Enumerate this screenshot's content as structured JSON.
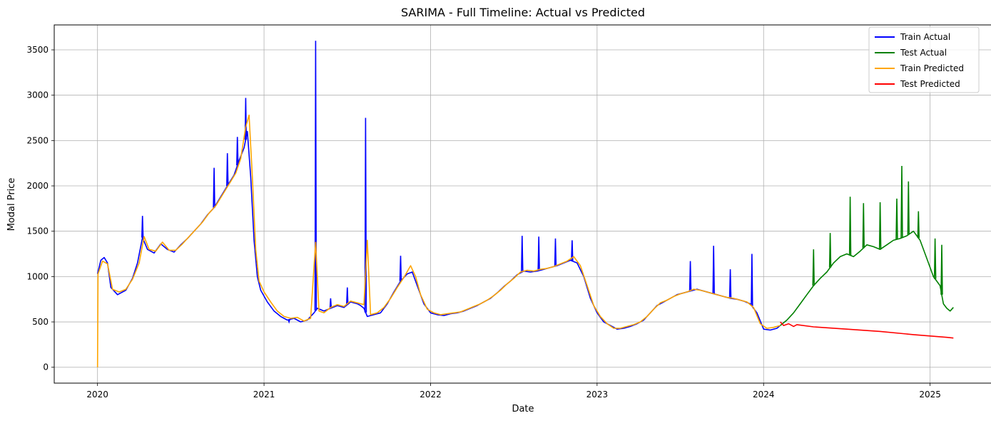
{
  "chart_data": {
    "type": "line",
    "title": "SARIMA - Full Timeline: Actual vs Predicted",
    "xlabel": "Date",
    "ylabel": "Modal Price",
    "x_ticks": [
      "2020",
      "2021",
      "2022",
      "2023",
      "2024",
      "2025"
    ],
    "y_ticks": [
      0,
      500,
      1000,
      1500,
      2000,
      2500,
      3000,
      3500
    ],
    "xlim": [
      2019.74,
      2025.37
    ],
    "ylim": [
      -175,
      3775
    ],
    "grid": true,
    "legend_position": "top-right",
    "series": [
      {
        "name": "Train Actual",
        "color": "#0000ff",
        "points": [
          [
            2020.0,
            1030
          ],
          [
            2020.02,
            1180
          ],
          [
            2020.04,
            1210
          ],
          [
            2020.06,
            1150
          ],
          [
            2020.08,
            880
          ],
          [
            2020.12,
            800
          ],
          [
            2020.17,
            850
          ],
          [
            2020.21,
            980
          ],
          [
            2020.24,
            1150
          ],
          [
            2020.27,
            1430
          ],
          [
            2020.3,
            1300
          ],
          [
            2020.34,
            1260
          ],
          [
            2020.38,
            1360
          ],
          [
            2020.42,
            1300
          ],
          [
            2020.46,
            1270
          ],
          [
            2020.5,
            1350
          ],
          [
            2020.54,
            1420
          ],
          [
            2020.58,
            1500
          ],
          [
            2020.62,
            1580
          ],
          [
            2020.66,
            1680
          ],
          [
            2020.7,
            1760
          ],
          [
            2020.74,
            1880
          ],
          [
            2020.78,
            2000
          ],
          [
            2020.82,
            2120
          ],
          [
            2020.85,
            2280
          ],
          [
            2020.88,
            2420
          ],
          [
            2020.9,
            2600
          ],
          [
            2020.92,
            2100
          ],
          [
            2020.94,
            1400
          ],
          [
            2020.96,
            1000
          ],
          [
            2020.98,
            850
          ],
          [
            2021.02,
            720
          ],
          [
            2021.06,
            620
          ],
          [
            2021.1,
            560
          ],
          [
            2021.14,
            520
          ],
          [
            2021.18,
            540
          ],
          [
            2021.22,
            500
          ],
          [
            2021.26,
            520
          ],
          [
            2021.3,
            600
          ],
          [
            2021.32,
            650
          ],
          [
            2021.36,
            620
          ],
          [
            2021.4,
            650
          ],
          [
            2021.44,
            680
          ],
          [
            2021.48,
            660
          ],
          [
            2021.52,
            720
          ],
          [
            2021.56,
            700
          ],
          [
            2021.58,
            680
          ],
          [
            2021.6,
            650
          ],
          [
            2021.62,
            560
          ],
          [
            2021.66,
            580
          ],
          [
            2021.7,
            600
          ],
          [
            2021.74,
            700
          ],
          [
            2021.78,
            830
          ],
          [
            2021.82,
            950
          ],
          [
            2021.86,
            1030
          ],
          [
            2021.89,
            1050
          ],
          [
            2021.92,
            900
          ],
          [
            2021.96,
            700
          ],
          [
            2022.0,
            600
          ],
          [
            2022.04,
            580
          ],
          [
            2022.08,
            570
          ],
          [
            2022.12,
            590
          ],
          [
            2022.16,
            600
          ],
          [
            2022.2,
            620
          ],
          [
            2022.24,
            650
          ],
          [
            2022.28,
            680
          ],
          [
            2022.32,
            720
          ],
          [
            2022.36,
            760
          ],
          [
            2022.4,
            820
          ],
          [
            2022.44,
            890
          ],
          [
            2022.48,
            950
          ],
          [
            2022.52,
            1020
          ],
          [
            2022.56,
            1060
          ],
          [
            2022.6,
            1050
          ],
          [
            2022.64,
            1060
          ],
          [
            2022.68,
            1080
          ],
          [
            2022.72,
            1100
          ],
          [
            2022.76,
            1120
          ],
          [
            2022.8,
            1150
          ],
          [
            2022.84,
            1180
          ],
          [
            2022.88,
            1150
          ],
          [
            2022.92,
            1000
          ],
          [
            2022.96,
            760
          ],
          [
            2023.0,
            600
          ],
          [
            2023.04,
            500
          ],
          [
            2023.08,
            460
          ],
          [
            2023.12,
            420
          ],
          [
            2023.16,
            430
          ],
          [
            2023.2,
            450
          ],
          [
            2023.24,
            480
          ],
          [
            2023.28,
            520
          ],
          [
            2023.32,
            600
          ],
          [
            2023.36,
            680
          ],
          [
            2023.4,
            720
          ],
          [
            2023.44,
            760
          ],
          [
            2023.48,
            800
          ],
          [
            2023.52,
            820
          ],
          [
            2023.56,
            840
          ],
          [
            2023.6,
            860
          ],
          [
            2023.64,
            840
          ],
          [
            2023.68,
            820
          ],
          [
            2023.72,
            800
          ],
          [
            2023.76,
            780
          ],
          [
            2023.8,
            760
          ],
          [
            2023.84,
            750
          ],
          [
            2023.88,
            730
          ],
          [
            2023.92,
            700
          ],
          [
            2023.96,
            600
          ],
          [
            2024.0,
            420
          ],
          [
            2024.04,
            410
          ],
          [
            2024.08,
            430
          ],
          [
            2024.1,
            460
          ]
        ],
        "spikes": [
          [
            2020.27,
            1670
          ],
          [
            2020.89,
            2970
          ],
          [
            2021.31,
            3600
          ],
          [
            2021.61,
            2750
          ],
          [
            2021.15,
            500
          ],
          [
            2021.4,
            760
          ],
          [
            2021.5,
            880
          ],
          [
            2021.82,
            1230
          ],
          [
            2022.55,
            1450
          ],
          [
            2022.65,
            1440
          ],
          [
            2022.75,
            1420
          ],
          [
            2022.85,
            1400
          ],
          [
            2023.7,
            1340
          ],
          [
            2023.93,
            1250
          ],
          [
            2023.56,
            1170
          ],
          [
            2023.8,
            1080
          ],
          [
            2020.7,
            2200
          ],
          [
            2020.78,
            2360
          ],
          [
            2020.84,
            2540
          ]
        ]
      },
      {
        "name": "Test Actual",
        "color": "#008000",
        "points": [
          [
            2024.1,
            460
          ],
          [
            2024.14,
            520
          ],
          [
            2024.18,
            600
          ],
          [
            2024.22,
            700
          ],
          [
            2024.26,
            800
          ],
          [
            2024.3,
            900
          ],
          [
            2024.34,
            980
          ],
          [
            2024.38,
            1050
          ],
          [
            2024.42,
            1150
          ],
          [
            2024.46,
            1220
          ],
          [
            2024.5,
            1250
          ],
          [
            2024.54,
            1220
          ],
          [
            2024.58,
            1280
          ],
          [
            2024.62,
            1350
          ],
          [
            2024.66,
            1330
          ],
          [
            2024.7,
            1300
          ],
          [
            2024.74,
            1350
          ],
          [
            2024.78,
            1400
          ],
          [
            2024.82,
            1420
          ],
          [
            2024.86,
            1450
          ],
          [
            2024.9,
            1500
          ],
          [
            2024.94,
            1400
          ],
          [
            2024.98,
            1200
          ],
          [
            2025.02,
            1000
          ],
          [
            2025.06,
            900
          ],
          [
            2025.08,
            700
          ],
          [
            2025.1,
            650
          ],
          [
            2025.12,
            620
          ],
          [
            2025.14,
            660
          ]
        ],
        "spikes": [
          [
            2024.3,
            1300
          ],
          [
            2024.4,
            1480
          ],
          [
            2024.52,
            1880
          ],
          [
            2024.6,
            1810
          ],
          [
            2024.7,
            1820
          ],
          [
            2024.8,
            1860
          ],
          [
            2024.83,
            2220
          ],
          [
            2024.87,
            2050
          ],
          [
            2024.93,
            1720
          ],
          [
            2025.03,
            1420
          ],
          [
            2025.07,
            1350
          ]
        ]
      },
      {
        "name": "Train Predicted",
        "color": "#ffa500",
        "points": [
          [
            2020.0,
            0
          ],
          [
            2020.003,
            1030
          ],
          [
            2020.03,
            1170
          ],
          [
            2020.06,
            1140
          ],
          [
            2020.09,
            860
          ],
          [
            2020.13,
            830
          ],
          [
            2020.17,
            860
          ],
          [
            2020.21,
            970
          ],
          [
            2020.25,
            1150
          ],
          [
            2020.28,
            1440
          ],
          [
            2020.31,
            1300
          ],
          [
            2020.35,
            1280
          ],
          [
            2020.39,
            1380
          ],
          [
            2020.43,
            1290
          ],
          [
            2020.47,
            1290
          ],
          [
            2020.51,
            1360
          ],
          [
            2020.55,
            1440
          ],
          [
            2020.59,
            1520
          ],
          [
            2020.63,
            1600
          ],
          [
            2020.67,
            1700
          ],
          [
            2020.71,
            1780
          ],
          [
            2020.75,
            1900
          ],
          [
            2020.79,
            2020
          ],
          [
            2020.83,
            2140
          ],
          [
            2020.86,
            2300
          ],
          [
            2020.89,
            2650
          ],
          [
            2020.91,
            2780
          ],
          [
            2020.93,
            2100
          ],
          [
            2020.95,
            1300
          ],
          [
            2020.97,
            950
          ],
          [
            2021.0,
            830
          ],
          [
            2021.04,
            720
          ],
          [
            2021.08,
            620
          ],
          [
            2021.12,
            560
          ],
          [
            2021.16,
            540
          ],
          [
            2021.2,
            550
          ],
          [
            2021.24,
            510
          ],
          [
            2021.28,
            540
          ],
          [
            2021.31,
            1380
          ],
          [
            2021.33,
            620
          ],
          [
            2021.36,
            600
          ],
          [
            2021.4,
            660
          ],
          [
            2021.44,
            690
          ],
          [
            2021.48,
            670
          ],
          [
            2021.52,
            730
          ],
          [
            2021.56,
            710
          ],
          [
            2021.6,
            690
          ],
          [
            2021.62,
            1400
          ],
          [
            2021.64,
            580
          ],
          [
            2021.68,
            600
          ],
          [
            2021.72,
            660
          ],
          [
            2021.76,
            760
          ],
          [
            2021.8,
            880
          ],
          [
            2021.84,
            990
          ],
          [
            2021.88,
            1120
          ],
          [
            2021.91,
            1000
          ],
          [
            2021.94,
            800
          ],
          [
            2021.98,
            640
          ],
          [
            2022.02,
            600
          ],
          [
            2022.06,
            580
          ],
          [
            2022.1,
            590
          ],
          [
            2022.14,
            600
          ],
          [
            2022.18,
            610
          ],
          [
            2022.22,
            640
          ],
          [
            2022.26,
            670
          ],
          [
            2022.3,
            700
          ],
          [
            2022.34,
            740
          ],
          [
            2022.38,
            790
          ],
          [
            2022.42,
            850
          ],
          [
            2022.46,
            920
          ],
          [
            2022.5,
            980
          ],
          [
            2022.54,
            1050
          ],
          [
            2022.58,
            1070
          ],
          [
            2022.62,
            1060
          ],
          [
            2022.66,
            1080
          ],
          [
            2022.7,
            1090
          ],
          [
            2022.74,
            1110
          ],
          [
            2022.78,
            1140
          ],
          [
            2022.82,
            1170
          ],
          [
            2022.86,
            1220
          ],
          [
            2022.9,
            1120
          ],
          [
            2022.94,
            900
          ],
          [
            2022.98,
            680
          ],
          [
            2023.02,
            560
          ],
          [
            2023.06,
            480
          ],
          [
            2023.1,
            430
          ],
          [
            2023.14,
            430
          ],
          [
            2023.18,
            450
          ],
          [
            2023.22,
            470
          ],
          [
            2023.26,
            500
          ],
          [
            2023.3,
            560
          ],
          [
            2023.34,
            640
          ],
          [
            2023.38,
            710
          ],
          [
            2023.42,
            740
          ],
          [
            2023.46,
            780
          ],
          [
            2023.5,
            810
          ],
          [
            2023.54,
            830
          ],
          [
            2023.58,
            860
          ],
          [
            2023.62,
            850
          ],
          [
            2023.66,
            830
          ],
          [
            2023.7,
            810
          ],
          [
            2023.74,
            790
          ],
          [
            2023.78,
            770
          ],
          [
            2023.82,
            760
          ],
          [
            2023.86,
            740
          ],
          [
            2023.9,
            720
          ],
          [
            2023.94,
            660
          ],
          [
            2023.98,
            480
          ],
          [
            2024.02,
            430
          ],
          [
            2024.06,
            440
          ],
          [
            2024.1,
            460
          ]
        ]
      },
      {
        "name": "Test Predicted",
        "color": "#ff0000",
        "points": [
          [
            2024.1,
            500
          ],
          [
            2024.12,
            460
          ],
          [
            2024.15,
            480
          ],
          [
            2024.18,
            450
          ],
          [
            2024.2,
            470
          ],
          [
            2024.3,
            445
          ],
          [
            2024.5,
            420
          ],
          [
            2024.7,
            395
          ],
          [
            2024.9,
            360
          ],
          [
            2025.1,
            330
          ],
          [
            2025.14,
            322
          ]
        ]
      }
    ]
  }
}
